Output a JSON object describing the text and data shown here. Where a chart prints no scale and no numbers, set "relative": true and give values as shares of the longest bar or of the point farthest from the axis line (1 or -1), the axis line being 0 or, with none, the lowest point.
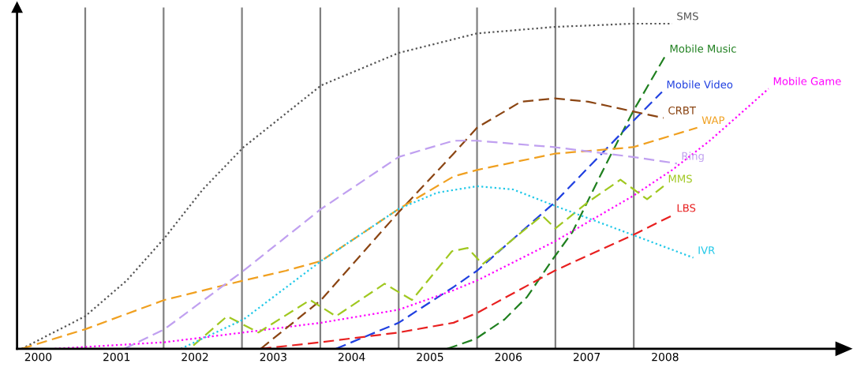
{
  "chart_data": {
    "type": "line",
    "relative": true,
    "tick_labels": "x",
    "grid": false,
    "legend": false,
    "marker": "none",
    "xlim": [
      1999.73,
      2010.18
    ],
    "xticks": [
      2000,
      2001,
      2002,
      2003,
      2004,
      2005,
      2006,
      2007,
      2008
    ],
    "ref_lines": [
      {
        "axis": "x",
        "value": 2000.6,
        "color": "#808080"
      },
      {
        "axis": "x",
        "value": 2001.6,
        "color": "#808080"
      },
      {
        "axis": "x",
        "value": 2002.6,
        "color": "#808080"
      },
      {
        "axis": "x",
        "value": 2003.6,
        "color": "#808080"
      },
      {
        "axis": "x",
        "value": 2004.6,
        "color": "#808080"
      },
      {
        "axis": "x",
        "value": 2005.6,
        "color": "#808080"
      },
      {
        "axis": "x",
        "value": 2006.6,
        "color": "#808080"
      },
      {
        "axis": "x",
        "value": 2007.6,
        "color": "#808080"
      }
    ],
    "series": [
      {
        "name": "SMS",
        "color": "#555555",
        "line_style": "dotted",
        "x": [
          1999.79,
          2000.6,
          2001.13,
          2001.61,
          2002.1,
          2002.62,
          2003.61,
          2004.6,
          2005.6,
          2006.59,
          2007.59,
          2008.09
        ],
        "values": [
          0,
          0.1,
          0.21,
          0.34,
          0.49,
          0.62,
          0.81,
          0.91,
          0.97,
          0.99,
          1.0,
          1.0
        ]
      },
      {
        "name": "Mobile Music",
        "color": "#208020",
        "line_style": "dashed",
        "x": [
          2005.22,
          2005.58,
          2005.95,
          2006.24,
          2006.58,
          2006.82,
          2007.23,
          2007.59,
          2008.0
        ],
        "values": [
          0,
          0.03,
          0.09,
          0.16,
          0.28,
          0.36,
          0.56,
          0.73,
          0.9
        ]
      },
      {
        "name": "Mobile Video",
        "color": "#2040e0",
        "line_style": "dashed",
        "x": [
          2003.8,
          2004.6,
          2005.3,
          2005.6,
          2006.59,
          2007.59,
          2007.96
        ],
        "values": [
          0,
          0.08,
          0.19,
          0.24,
          0.45,
          0.7,
          0.79
        ]
      },
      {
        "name": "Mobile Game",
        "color": "#ff00ff",
        "line_style": "dotted",
        "x": [
          2000.21,
          2001.61,
          2002.62,
          2003.61,
          2004.6,
          2005.3,
          2005.6,
          2006.59,
          2007.59,
          2008.09,
          2008.57,
          2009.04,
          2009.32
        ],
        "values": [
          0,
          0.02,
          0.05,
          0.08,
          0.12,
          0.18,
          0.21,
          0.33,
          0.47,
          0.55,
          0.64,
          0.74,
          0.8
        ]
      },
      {
        "name": "CRBT",
        "color": "#8b4513",
        "line_style": "dashed",
        "x": [
          2002.84,
          2003.61,
          2004.6,
          2005.3,
          2005.6,
          2006.16,
          2006.59,
          2007.02,
          2007.59,
          2007.98
        ],
        "values": [
          0,
          0.15,
          0.42,
          0.6,
          0.68,
          0.76,
          0.77,
          0.76,
          0.73,
          0.71
        ]
      },
      {
        "name": "WAP",
        "color": "#f0a020",
        "line_style": "dashed",
        "x": [
          1999.79,
          2000.6,
          2001.61,
          2002.62,
          2003.16,
          2003.61,
          2004.6,
          2005.3,
          2005.6,
          2006.59,
          2007.59,
          2008.41
        ],
        "values": [
          0,
          0.06,
          0.15,
          0.21,
          0.24,
          0.27,
          0.43,
          0.53,
          0.55,
          0.6,
          0.62,
          0.68
        ]
      },
      {
        "name": "Ring",
        "color": "#c0a0f0",
        "line_style": "dashed",
        "x": [
          2001.1,
          2001.61,
          2002.62,
          2003.61,
          2004.6,
          2005.3,
          2005.6,
          2006.59,
          2007.59,
          2008.15
        ],
        "values": [
          0,
          0.06,
          0.24,
          0.43,
          0.59,
          0.64,
          0.64,
          0.62,
          0.59,
          0.57
        ]
      },
      {
        "name": "MMS",
        "color": "#a0c820",
        "line_style": "dashed",
        "x": [
          2001.98,
          2002.41,
          2002.81,
          2003.47,
          2003.8,
          2004.42,
          2004.77,
          2005.28,
          2005.48,
          2005.67,
          2006.43,
          2006.6,
          2007.01,
          2007.43,
          2007.77,
          2007.98
        ],
        "values": [
          0.01,
          0.1,
          0.05,
          0.15,
          0.1,
          0.2,
          0.15,
          0.3,
          0.31,
          0.26,
          0.41,
          0.37,
          0.45,
          0.52,
          0.46,
          0.5
        ]
      },
      {
        "name": "LBS",
        "color": "#e82020",
        "line_style": "dashed",
        "x": [
          2002.84,
          2003.61,
          2004.6,
          2005.3,
          2005.6,
          2006.59,
          2007.59,
          2008.09
        ],
        "values": [
          0,
          0.02,
          0.05,
          0.08,
          0.11,
          0.24,
          0.35,
          0.41
        ]
      },
      {
        "name": "IVR",
        "color": "#20c8e8",
        "line_style": "dotted",
        "x": [
          2001.82,
          2002.62,
          2003.61,
          2004.6,
          2005.09,
          2005.6,
          2006.06,
          2006.59,
          2007.59,
          2008.36
        ],
        "values": [
          0,
          0.09,
          0.27,
          0.43,
          0.48,
          0.5,
          0.49,
          0.44,
          0.35,
          0.28
        ]
      }
    ]
  }
}
